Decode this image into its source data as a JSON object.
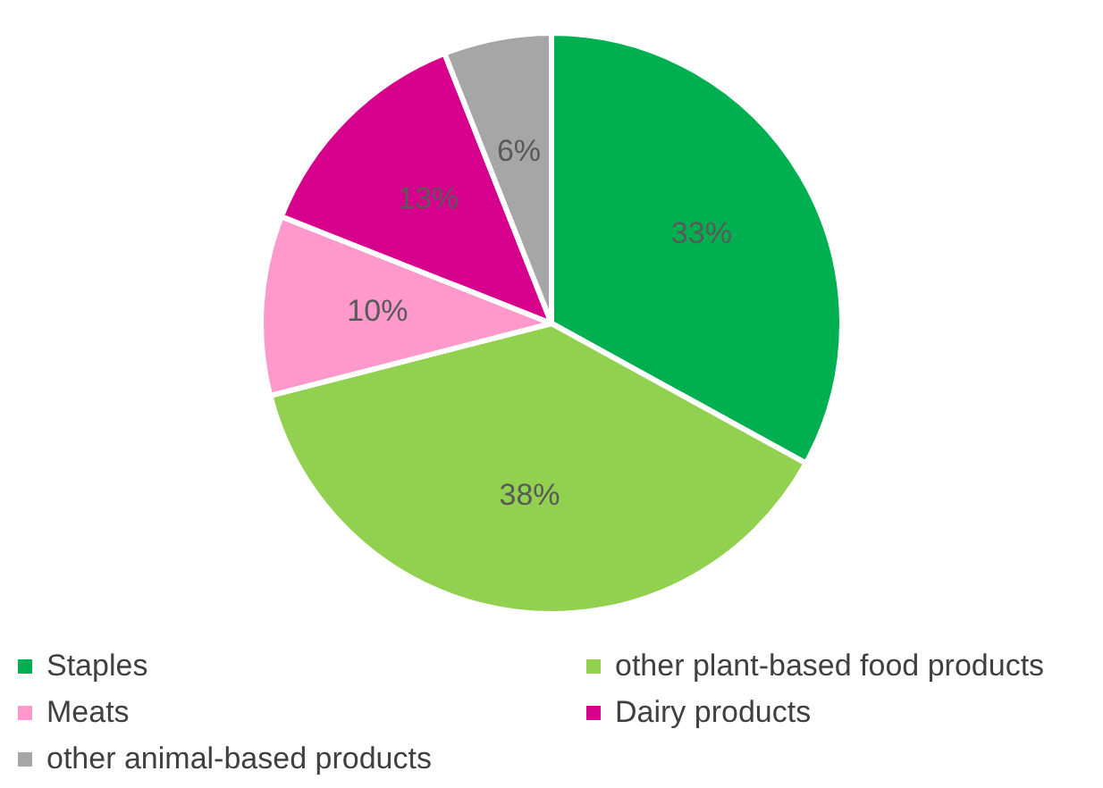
{
  "chart_data": {
    "type": "pie",
    "categories": [
      "Staples",
      "other plant-based food products",
      "Meats",
      "Dairy products",
      "other animal-based products"
    ],
    "values": [
      33,
      38,
      10,
      13,
      6
    ],
    "colors": [
      "#00b050",
      "#92d050",
      "#ff99cc",
      "#d6008c",
      "#a6a6a6"
    ],
    "value_labels": [
      "33%",
      "38%",
      "10%",
      "13%",
      "6%"
    ],
    "legend": "bottom"
  }
}
